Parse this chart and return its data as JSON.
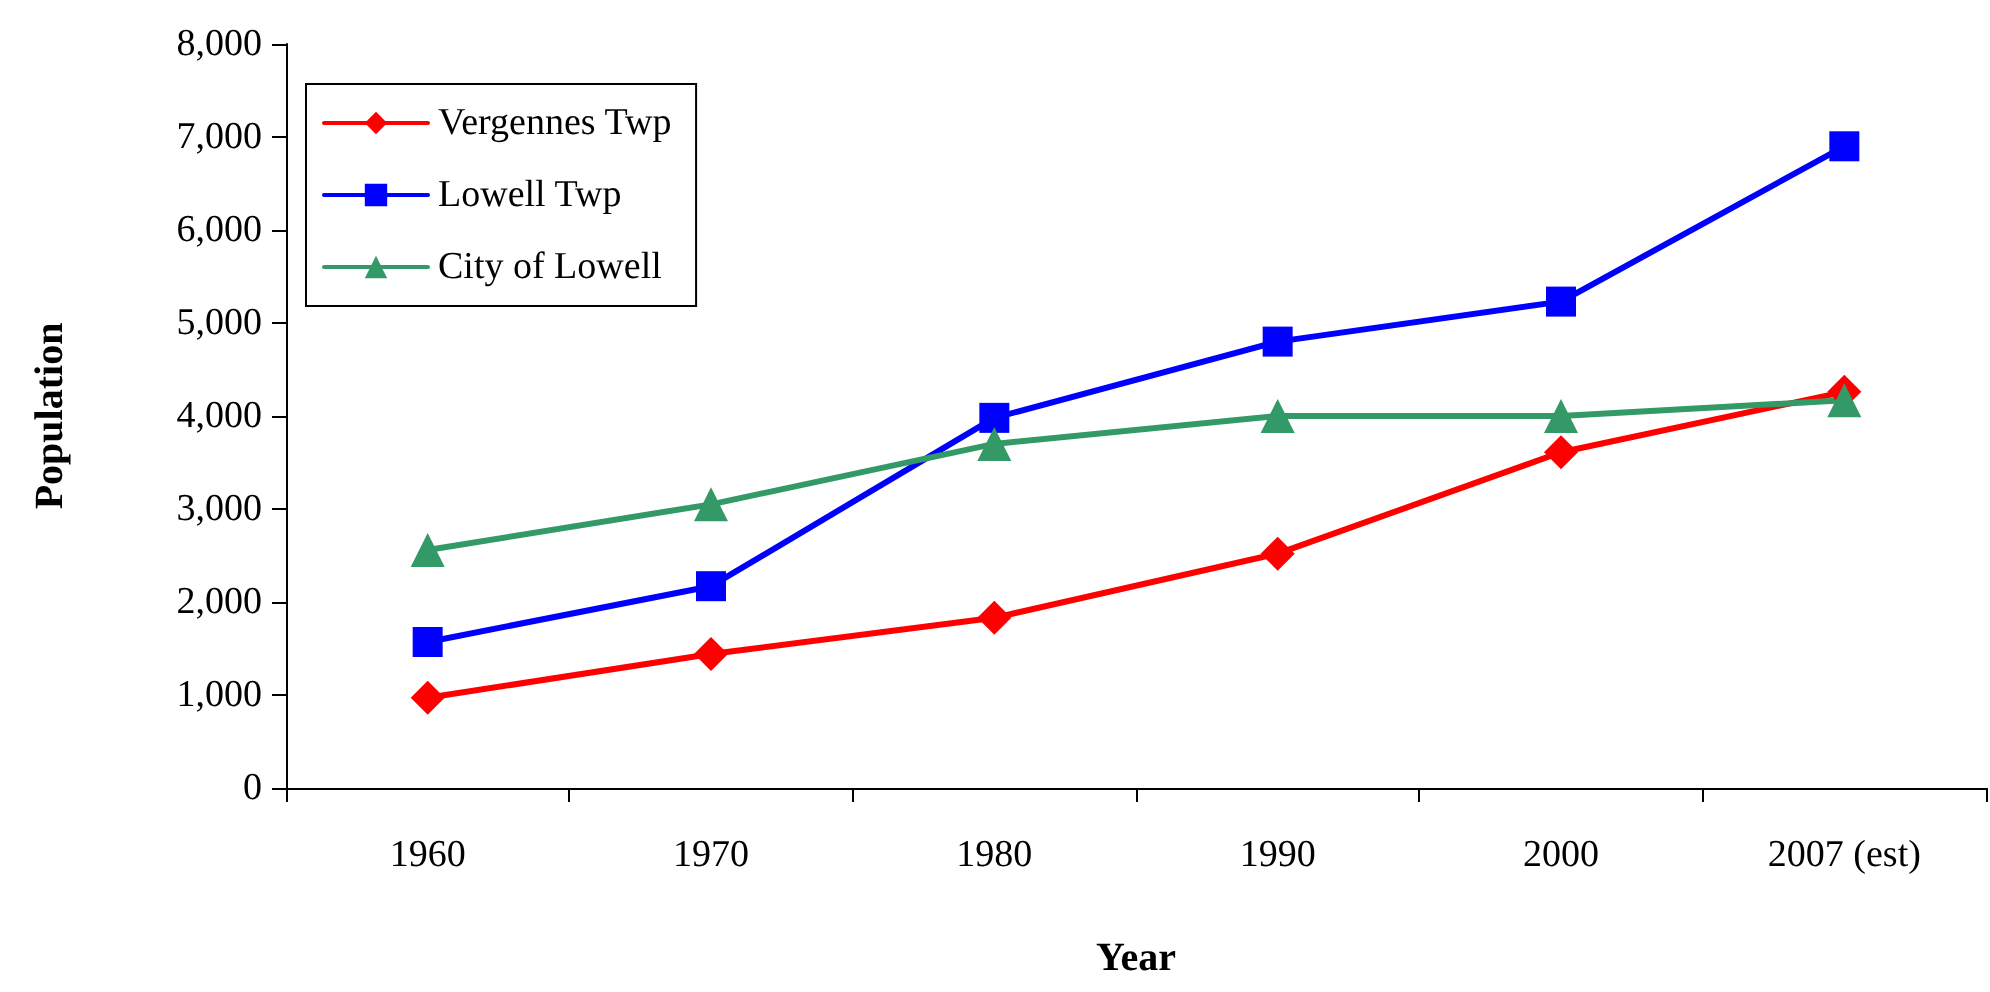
{
  "chart_data": {
    "type": "line",
    "xlabel": "Year",
    "ylabel": "Population",
    "categories": [
      "1960",
      "1970",
      "1980",
      "1990",
      "2000",
      "2007 (est)"
    ],
    "series": [
      {
        "name": "Vergennes Twp",
        "color": "#ff0000",
        "marker": "diamond",
        "values": [
          970,
          1440,
          1830,
          2520,
          3610,
          4260
        ]
      },
      {
        "name": "Lowell Twp",
        "color": "#0000ff",
        "marker": "square",
        "values": [
          1570,
          2170,
          3980,
          4800,
          5230,
          6900
        ]
      },
      {
        "name": "City of Lowell",
        "color": "#339966",
        "marker": "triangle",
        "values": [
          2560,
          3050,
          3700,
          4000,
          4000,
          4170
        ]
      }
    ],
    "ylim": [
      0,
      8000
    ],
    "yticks": [
      0,
      {
        "value": 1000,
        "label": "1,000"
      },
      {
        "value": 2000,
        "label": "2,000"
      },
      {
        "value": 3000,
        "label": "3,000"
      },
      {
        "value": 4000,
        "label": "4,000"
      },
      {
        "value": 5000,
        "label": "5,000"
      },
      {
        "value": 6000,
        "label": "6,000"
      },
      {
        "value": 7000,
        "label": "7,000"
      },
      {
        "value": 8000,
        "label": "8,000"
      }
    ],
    "grid": false,
    "legend": "top left",
    "line_style": "solid"
  }
}
